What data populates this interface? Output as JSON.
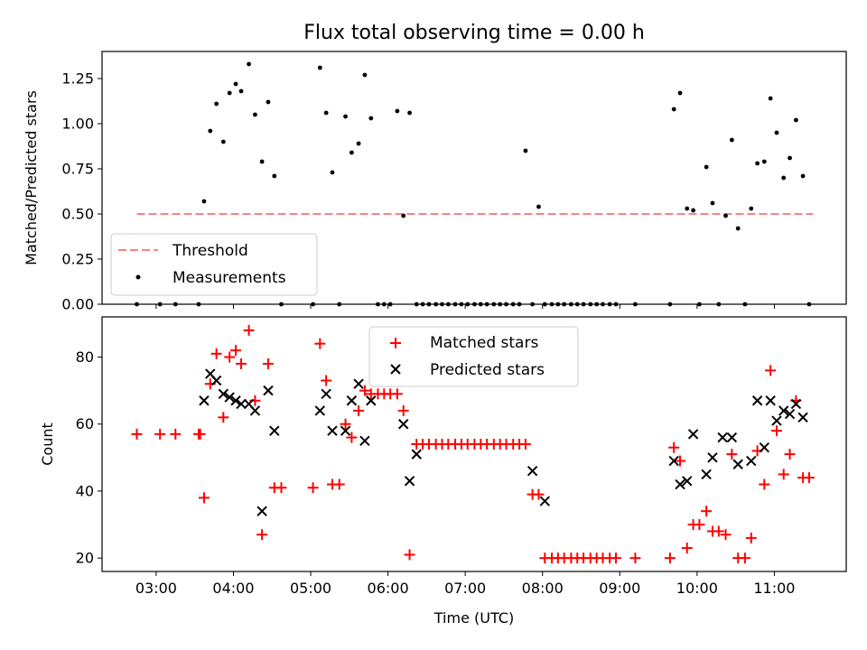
{
  "chart_data": [
    {
      "type": "scatter",
      "title": "Flux total observing time = 0.00 h",
      "xlabel": "",
      "ylabel": "Matched/Predicted stars",
      "xlim_hours": [
        2.3,
        11.93
      ],
      "ylim": [
        0,
        1.4
      ],
      "yticks": [
        0.0,
        0.25,
        0.5,
        0.75,
        1.0,
        1.25
      ],
      "ytick_labels": [
        "0.00",
        "0.25",
        "0.50",
        "0.75",
        "1.00",
        "1.25"
      ],
      "legend": {
        "position": "lower-left",
        "entries": [
          "Threshold",
          "Measurements"
        ]
      },
      "threshold": {
        "name": "Threshold",
        "value": 0.5,
        "x": [
          2.75,
          11.5
        ],
        "color": "#ff8080"
      },
      "series": [
        {
          "name": "Measurements",
          "color": "#000000",
          "x": [
            2.75,
            3.05,
            3.25,
            3.55,
            3.62,
            3.7,
            3.78,
            3.87,
            3.95,
            4.03,
            4.1,
            4.2,
            4.28,
            4.37,
            4.45,
            4.53,
            4.62,
            5.03,
            5.12,
            5.2,
            5.28,
            5.37,
            5.45,
            5.53,
            5.62,
            5.7,
            5.78,
            5.87,
            5.95,
            6.03,
            6.12,
            6.2,
            6.28,
            6.37,
            6.45,
            6.53,
            6.62,
            6.7,
            6.78,
            6.87,
            6.95,
            7.03,
            7.12,
            7.2,
            7.28,
            7.37,
            7.45,
            7.53,
            7.62,
            7.7,
            7.78,
            7.87,
            7.95,
            8.03,
            8.12,
            8.2,
            8.28,
            8.37,
            8.45,
            8.53,
            8.62,
            8.7,
            8.78,
            8.87,
            8.95,
            9.2,
            9.65,
            9.7,
            9.78,
            9.87,
            9.95,
            10.03,
            10.12,
            10.2,
            10.28,
            10.37,
            10.45,
            10.53,
            10.62,
            10.7,
            10.78,
            10.87,
            10.95,
            11.03,
            11.12,
            11.2,
            11.28,
            11.37,
            11.45
          ],
          "y": [
            0.0,
            0.0,
            0.0,
            0.0,
            0.57,
            0.96,
            1.11,
            0.9,
            1.17,
            1.22,
            1.18,
            1.33,
            1.05,
            0.79,
            1.12,
            0.71,
            0.0,
            0.0,
            1.31,
            1.06,
            0.73,
            0.0,
            1.04,
            0.84,
            0.89,
            1.27,
            1.03,
            0.0,
            0.0,
            0.0,
            1.07,
            0.49,
            1.06,
            0.0,
            0.0,
            0.0,
            0.0,
            0.0,
            0.0,
            0.0,
            0.0,
            0.0,
            0.0,
            0.0,
            0.0,
            0.0,
            0.0,
            0.0,
            0.0,
            0.0,
            0.85,
            0.0,
            0.54,
            0.0,
            0.0,
            0.0,
            0.0,
            0.0,
            0.0,
            0.0,
            0.0,
            0.0,
            0.0,
            0.0,
            0.0,
            0.0,
            0.0,
            1.08,
            1.17,
            0.53,
            0.52,
            0.0,
            0.76,
            0.56,
            0.0,
            0.49,
            0.91,
            0.42,
            0.0,
            0.53,
            0.78,
            0.79,
            1.14,
            0.95,
            0.7,
            0.81,
            1.02,
            0.71,
            0.0
          ]
        }
      ]
    },
    {
      "type": "scatter",
      "title": "",
      "xlabel": "Time (UTC)",
      "ylabel": "Count",
      "xlim_hours": [
        2.3,
        11.93
      ],
      "ylim": [
        16,
        92
      ],
      "yticks": [
        20,
        40,
        60,
        80
      ],
      "ytick_labels": [
        "20",
        "40",
        "60",
        "80"
      ],
      "xticks_hours": [
        3,
        4,
        5,
        6,
        7,
        8,
        9,
        10,
        11
      ],
      "xtick_labels": [
        "03:00",
        "04:00",
        "05:00",
        "06:00",
        "07:00",
        "08:00",
        "09:00",
        "10:00",
        "11:00"
      ],
      "legend": {
        "position": "upper-center",
        "entries": [
          "Matched stars",
          "Predicted stars"
        ]
      },
      "series": [
        {
          "name": "Matched stars",
          "marker": "plus",
          "color": "#ff0000",
          "x": [
            2.75,
            3.05,
            3.25,
            3.55,
            3.57,
            3.62,
            3.7,
            3.78,
            3.87,
            3.95,
            4.03,
            4.1,
            4.2,
            4.28,
            4.37,
            4.45,
            4.53,
            4.62,
            5.03,
            5.12,
            5.2,
            5.28,
            5.37,
            5.45,
            5.53,
            5.62,
            5.7,
            5.78,
            5.87,
            5.95,
            6.03,
            6.12,
            6.2,
            6.28,
            6.37,
            6.45,
            6.53,
            6.62,
            6.7,
            6.78,
            6.87,
            6.95,
            7.03,
            7.12,
            7.2,
            7.28,
            7.37,
            7.45,
            7.53,
            7.62,
            7.7,
            7.78,
            7.87,
            7.95,
            8.03,
            8.12,
            8.2,
            8.28,
            8.37,
            8.45,
            8.53,
            8.62,
            8.7,
            8.78,
            8.87,
            8.95,
            9.2,
            9.65,
            9.7,
            9.78,
            9.87,
            9.95,
            10.03,
            10.12,
            10.2,
            10.28,
            10.37,
            10.45,
            10.53,
            10.62,
            10.7,
            10.78,
            10.87,
            10.95,
            11.03,
            11.12,
            11.2,
            11.28,
            11.37,
            11.45
          ],
          "y": [
            57,
            57,
            57,
            57,
            57,
            38,
            72,
            81,
            62,
            80,
            82,
            78,
            88,
            67,
            27,
            78,
            41,
            41,
            41,
            84,
            73,
            42,
            42,
            60,
            56,
            64,
            70,
            69,
            69,
            69,
            69,
            69,
            64,
            21,
            54,
            54,
            54,
            54,
            54,
            54,
            54,
            54,
            54,
            54,
            54,
            54,
            54,
            54,
            54,
            54,
            54,
            54,
            39,
            39,
            20,
            20,
            20,
            20,
            20,
            20,
            20,
            20,
            20,
            20,
            20,
            20,
            20,
            20,
            53,
            49,
            23,
            30,
            30,
            34,
            28,
            28,
            27,
            51,
            20,
            20,
            26,
            52,
            42,
            76,
            58,
            45,
            51,
            67,
            44,
            44
          ]
        },
        {
          "name": "Predicted stars",
          "marker": "x",
          "color": "#000000",
          "x": [
            3.62,
            3.7,
            3.78,
            3.87,
            3.95,
            4.03,
            4.1,
            4.2,
            4.28,
            4.37,
            4.45,
            4.53,
            5.12,
            5.2,
            5.28,
            5.45,
            5.53,
            5.62,
            5.7,
            5.78,
            6.2,
            6.28,
            6.37,
            7.87,
            8.03,
            9.7,
            9.78,
            9.87,
            9.95,
            10.12,
            10.2,
            10.33,
            10.45,
            10.53,
            10.7,
            10.78,
            10.87,
            10.95,
            11.03,
            11.12,
            11.2,
            11.28,
            11.37
          ],
          "y": [
            67,
            75,
            73,
            69,
            68,
            67,
            66,
            66,
            64,
            34,
            70,
            58,
            64,
            69,
            58,
            58,
            67,
            72,
            55,
            67,
            60,
            43,
            51,
            46,
            37,
            49,
            42,
            43,
            57,
            45,
            50,
            56,
            56,
            48,
            49,
            67,
            53,
            67,
            61,
            64,
            63,
            66,
            62
          ]
        }
      ]
    }
  ]
}
